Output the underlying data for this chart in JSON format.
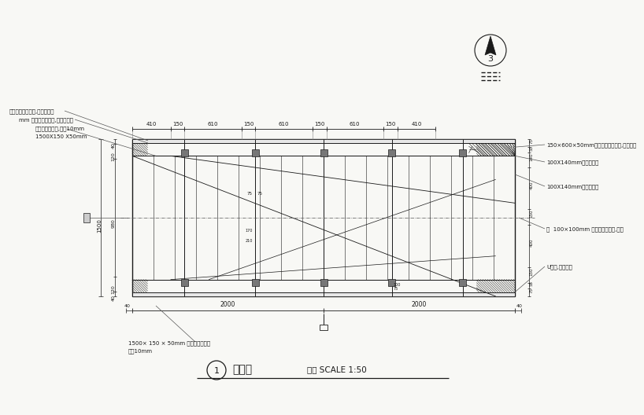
{
  "bg_color": "#f8f8f5",
  "line_color": "#1a1a1a",
  "title": "平面图",
  "scale_text": "比例 SCALE 1:50",
  "drawing_number": "1",
  "north_number": "3",
  "top_dims": [
    "410",
    "150",
    "610",
    "150",
    "610",
    "150",
    "610",
    "150",
    "410"
  ],
  "top_dim_vals": [
    410,
    150,
    610,
    150,
    610,
    150,
    610,
    150,
    410
  ],
  "dim_2000_left": "2000",
  "dim_2000_right": "2000",
  "left_dim_labels": [
    "40",
    "120",
    "980",
    "120",
    "40"
  ],
  "left_dim_vals": [
    40,
    120,
    980,
    120,
    40
  ],
  "right_dim_labels": [
    "75",
    "55",
    "140",
    "400",
    "150",
    "400",
    "150",
    "55",
    "75"
  ],
  "ann_left_1": "桥栏杆防腐木护栏,黑色漆饰面",
  "ann_left_2": "mm 椿子桩防腐木柱,黑色漆饰面",
  "ann_left_3": "椿子桩防腐木枋,搭缝10mm",
  "ann_left_4": "1500X150 X50mm",
  "ann_right_1": "150×600×50mm椿子桩防腐木衬板,黑色漆饰",
  "ann_right_2": "100X140mm工字钢横梁",
  "ann_right_3": "100X140mm工字钢横梁",
  "ann_right_4": "中  100×100mm 椿子桩防腐木枋,黑色",
  "ann_right_5": "U型钢,螺栓固定",
  "ann_bottom": "1500× 150 × 50mm 椿子桩防腐木条",
  "ann_bottom2": "搭缝10mm",
  "dim_1500": "1500",
  "dim_980": "980"
}
